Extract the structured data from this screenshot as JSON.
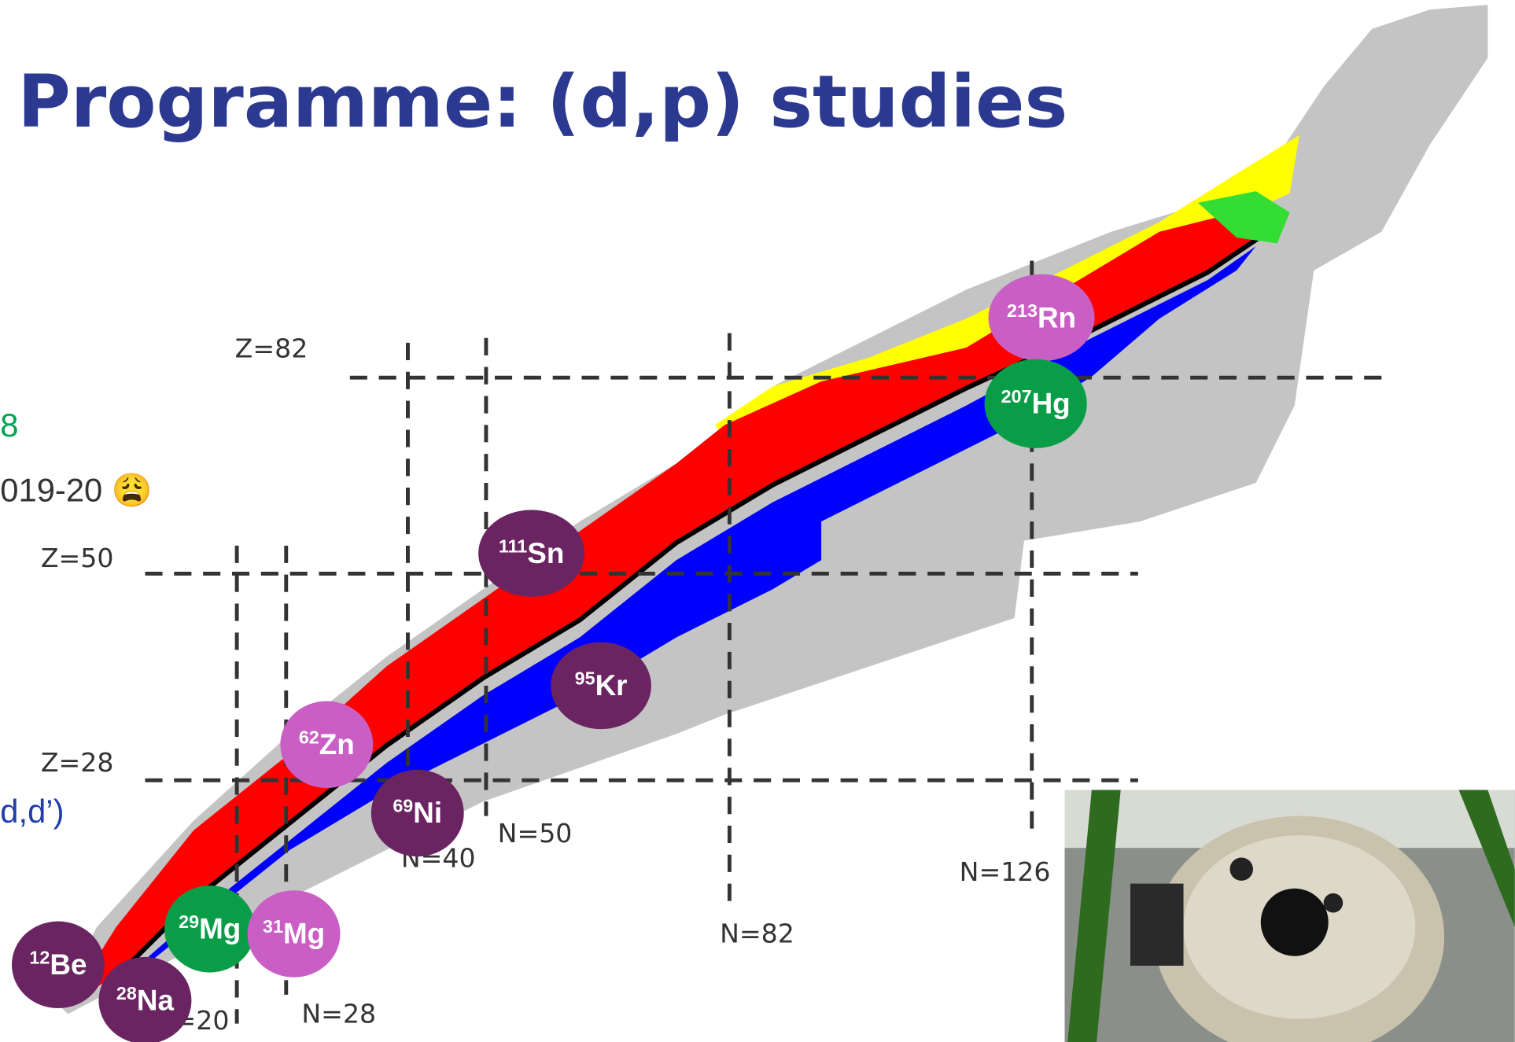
{
  "header": {
    "title": "Programme: (d,p) studies"
  },
  "side_text": [
    "8",
    "019-20 😩",
    "d,d’)"
  ],
  "magic_labels": [
    "Z=82",
    "Z=50",
    "Z=28",
    "N=20",
    "N=28",
    "N=40",
    "N=50",
    "N=82",
    "N=126"
  ],
  "nuclides": [
    {
      "mass": "213",
      "symbol": "Rn"
    },
    {
      "mass": "207",
      "symbol": "Hg"
    },
    {
      "mass": "111",
      "symbol": "Sn"
    },
    {
      "mass": "95",
      "symbol": "Kr"
    },
    {
      "mass": "62",
      "symbol": "Zn"
    },
    {
      "mass": "69",
      "symbol": "Ni"
    },
    {
      "mass": "29",
      "symbol": "Mg"
    },
    {
      "mass": "31",
      "symbol": "Mg"
    },
    {
      "mass": "12",
      "symbol": "Be"
    },
    {
      "mass": "28",
      "symbol": "Na"
    }
  ]
}
